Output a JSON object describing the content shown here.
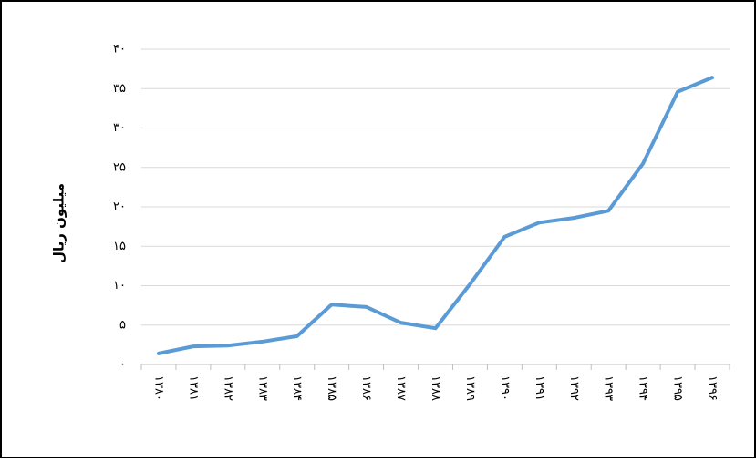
{
  "chart_data": {
    "type": "line",
    "y_label": "میلیون ریال",
    "categories": [
      "۱۳۸۰",
      "۱۳۸۱",
      "۱۳۸۲",
      "۱۳۸۳",
      "۱۳۸۴",
      "۱۳۸۵",
      "۱۳۸۶",
      "۱۳۸۷",
      "۱۳۸۸",
      "۱۳۸۹",
      "۱۳۹۰",
      "۱۳۹۱",
      "۱۳۹۲",
      "۱۳۹۳",
      "۱۳۹۴",
      "۱۳۹۵",
      "۱۳۹۶"
    ],
    "series": [
      {
        "color": "#5b9bd5",
        "values": [
          1.4,
          2.3,
          2.4,
          2.9,
          3.6,
          7.6,
          7.3,
          5.3,
          4.6,
          10.2,
          16.2,
          18.0,
          18.6,
          19.5,
          25.5,
          34.6,
          36.4
        ]
      }
    ],
    "ylim": [
      0,
      40
    ],
    "yticks": [
      {
        "value": 0,
        "label": "۰"
      },
      {
        "value": 5,
        "label": "۵"
      },
      {
        "value": 10,
        "label": "۱۰"
      },
      {
        "value": 15,
        "label": "۱۵"
      },
      {
        "value": 20,
        "label": "۲۰"
      },
      {
        "value": 25,
        "label": "۲۵"
      },
      {
        "value": 30,
        "label": "۳۰"
      },
      {
        "value": 35,
        "label": "۳۵"
      },
      {
        "value": 40,
        "label": "۴۰"
      }
    ],
    "grid": true
  }
}
